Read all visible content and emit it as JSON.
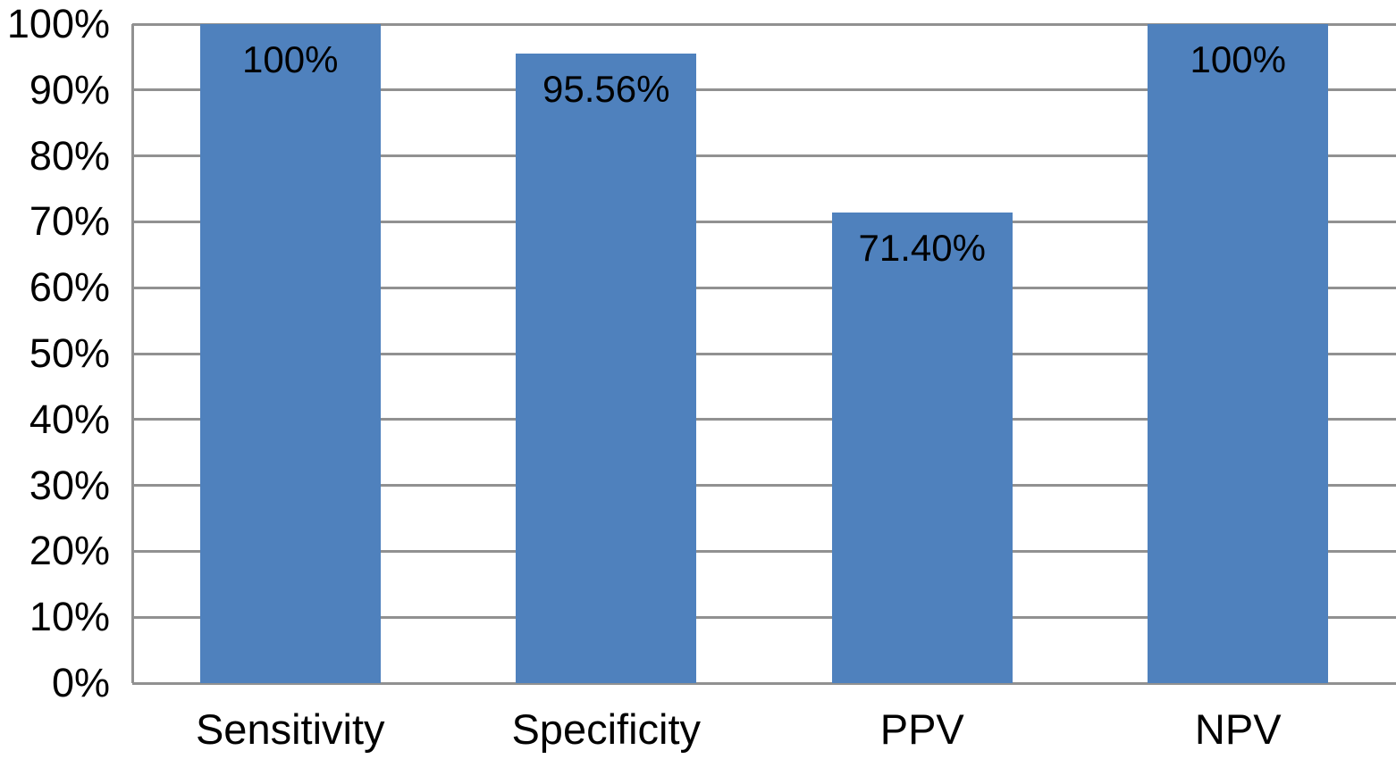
{
  "chart_data": {
    "type": "bar",
    "title": "",
    "xlabel": "",
    "ylabel": "",
    "categories": [
      "Sensitivity",
      "Specificity",
      "PPV",
      "NPV"
    ],
    "values": [
      100,
      95.56,
      71.4,
      100
    ],
    "value_labels": [
      "100%",
      "95.56%",
      "71.40%",
      "100%"
    ],
    "ylim": [
      0,
      100
    ],
    "ytick_step": 10,
    "ytick_labels": [
      "0%",
      "10%",
      "20%",
      "30%",
      "40%",
      "50%",
      "60%",
      "70%",
      "80%",
      "90%",
      "100%"
    ],
    "grid": "horizontal",
    "legend": "none",
    "bar_color": "#4f81bd",
    "gridline_color": "#919191",
    "axis_line_color": "#919191",
    "text_color": "#000000",
    "background_color": "#ffffff"
  }
}
